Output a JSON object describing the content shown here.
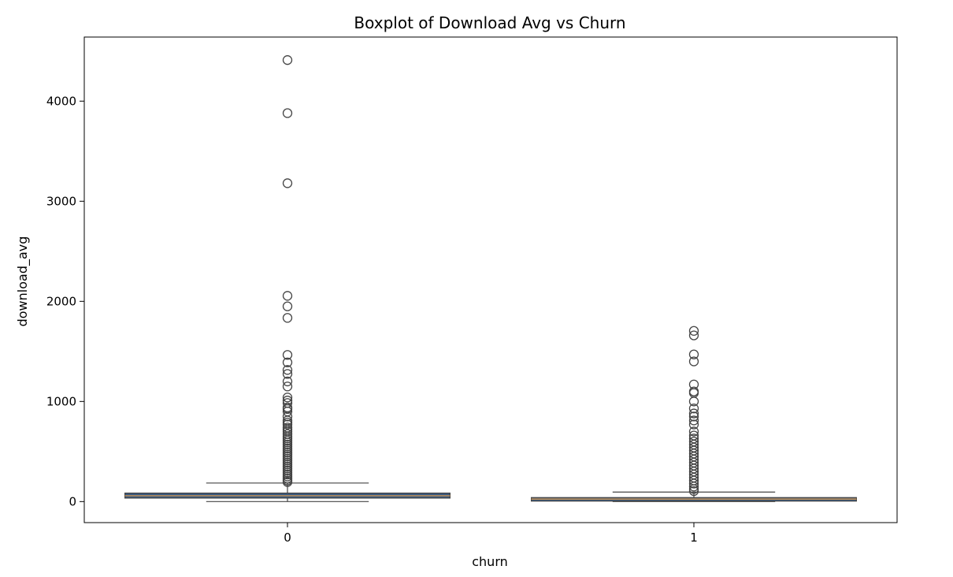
{
  "chart_data": {
    "type": "boxplot",
    "title": "Boxplot of Download Avg vs Churn",
    "xlabel": "churn",
    "ylabel": "download_avg",
    "categories": [
      "0",
      "1"
    ],
    "ylim": [
      -210,
      4640
    ],
    "yticks": [
      0,
      1000,
      2000,
      3000,
      4000
    ],
    "grid": false,
    "colors": {
      "box": "#3a5a80",
      "median": "#e8a04a",
      "outline": "#444444"
    },
    "boxes": [
      {
        "category": "0",
        "whisker_low": 0,
        "q1": 35,
        "median": 58,
        "q3": 85,
        "whisker_high": 185,
        "outliers": [
          4410,
          3880,
          3180,
          2055,
          1950,
          1835,
          1465,
          1390,
          1315,
          1275,
          1200,
          1150,
          1040,
          1010,
          985,
          940,
          925,
          900,
          850,
          810,
          790,
          770,
          740,
          720,
          700,
          675,
          650,
          630,
          610,
          590,
          570,
          550,
          530,
          510,
          490,
          470,
          450,
          430,
          410,
          390,
          370,
          350,
          330,
          310,
          290,
          270,
          250,
          230,
          210,
          195
        ]
      },
      {
        "category": "1",
        "whisker_low": 0,
        "q1": 5,
        "median": 25,
        "q3": 40,
        "whisker_high": 95,
        "outliers": [
          1705,
          1660,
          1470,
          1400,
          1170,
          1100,
          1085,
          1000,
          930,
          880,
          850,
          810,
          770,
          700,
          660,
          630,
          600,
          570,
          540,
          510,
          480,
          450,
          420,
          390,
          360,
          330,
          300,
          270,
          240,
          210,
          180,
          150,
          125,
          105
        ]
      }
    ]
  }
}
